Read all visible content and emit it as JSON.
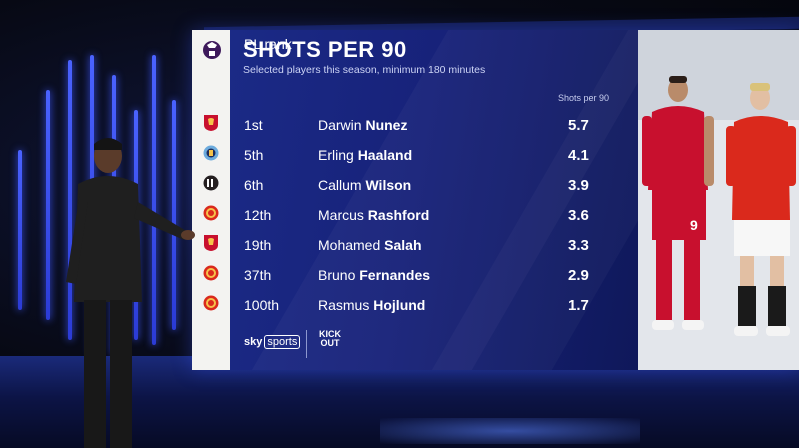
{
  "graphic": {
    "title": "SHOTS PER 90",
    "subtitle": "Selected players this season, minimum 180 minutes",
    "rank_header": "PL rank",
    "value_header": "Shots per 90",
    "rows": [
      {
        "rank": "1st",
        "first": "Darwin",
        "last": "Nunez",
        "value": "5.7",
        "club_icon": "liverpool-crest-icon"
      },
      {
        "rank": "5th",
        "first": "Erling",
        "last": "Haaland",
        "value": "4.1",
        "club_icon": "man-city-crest-icon"
      },
      {
        "rank": "6th",
        "first": "Callum",
        "last": "Wilson",
        "value": "3.9",
        "club_icon": "newcastle-crest-icon"
      },
      {
        "rank": "12th",
        "first": "Marcus",
        "last": "Rashford",
        "value": "3.6",
        "club_icon": "man-utd-crest-icon"
      },
      {
        "rank": "19th",
        "first": "Mohamed",
        "last": "Salah",
        "value": "3.3",
        "club_icon": "liverpool-crest-icon"
      },
      {
        "rank": "37th",
        "first": "Bruno",
        "last": "Fernandes",
        "value": "2.9",
        "club_icon": "man-utd-crest-icon"
      },
      {
        "rank": "100th",
        "first": "Rasmus",
        "last": "Hojlund",
        "value": "1.7",
        "club_icon": "man-utd-crest-icon"
      }
    ],
    "footer": {
      "sky_text": "sky",
      "sports_text": "sports",
      "kick_line1": "KICK",
      "kick_line2": "OUT"
    }
  },
  "colors": {
    "panel": "#17227a",
    "liverpool": "#c8102e",
    "man_city": "#6cabdd",
    "newcastle": "#241f20",
    "man_utd": "#da291c",
    "studio_light": "#3d56ff"
  }
}
